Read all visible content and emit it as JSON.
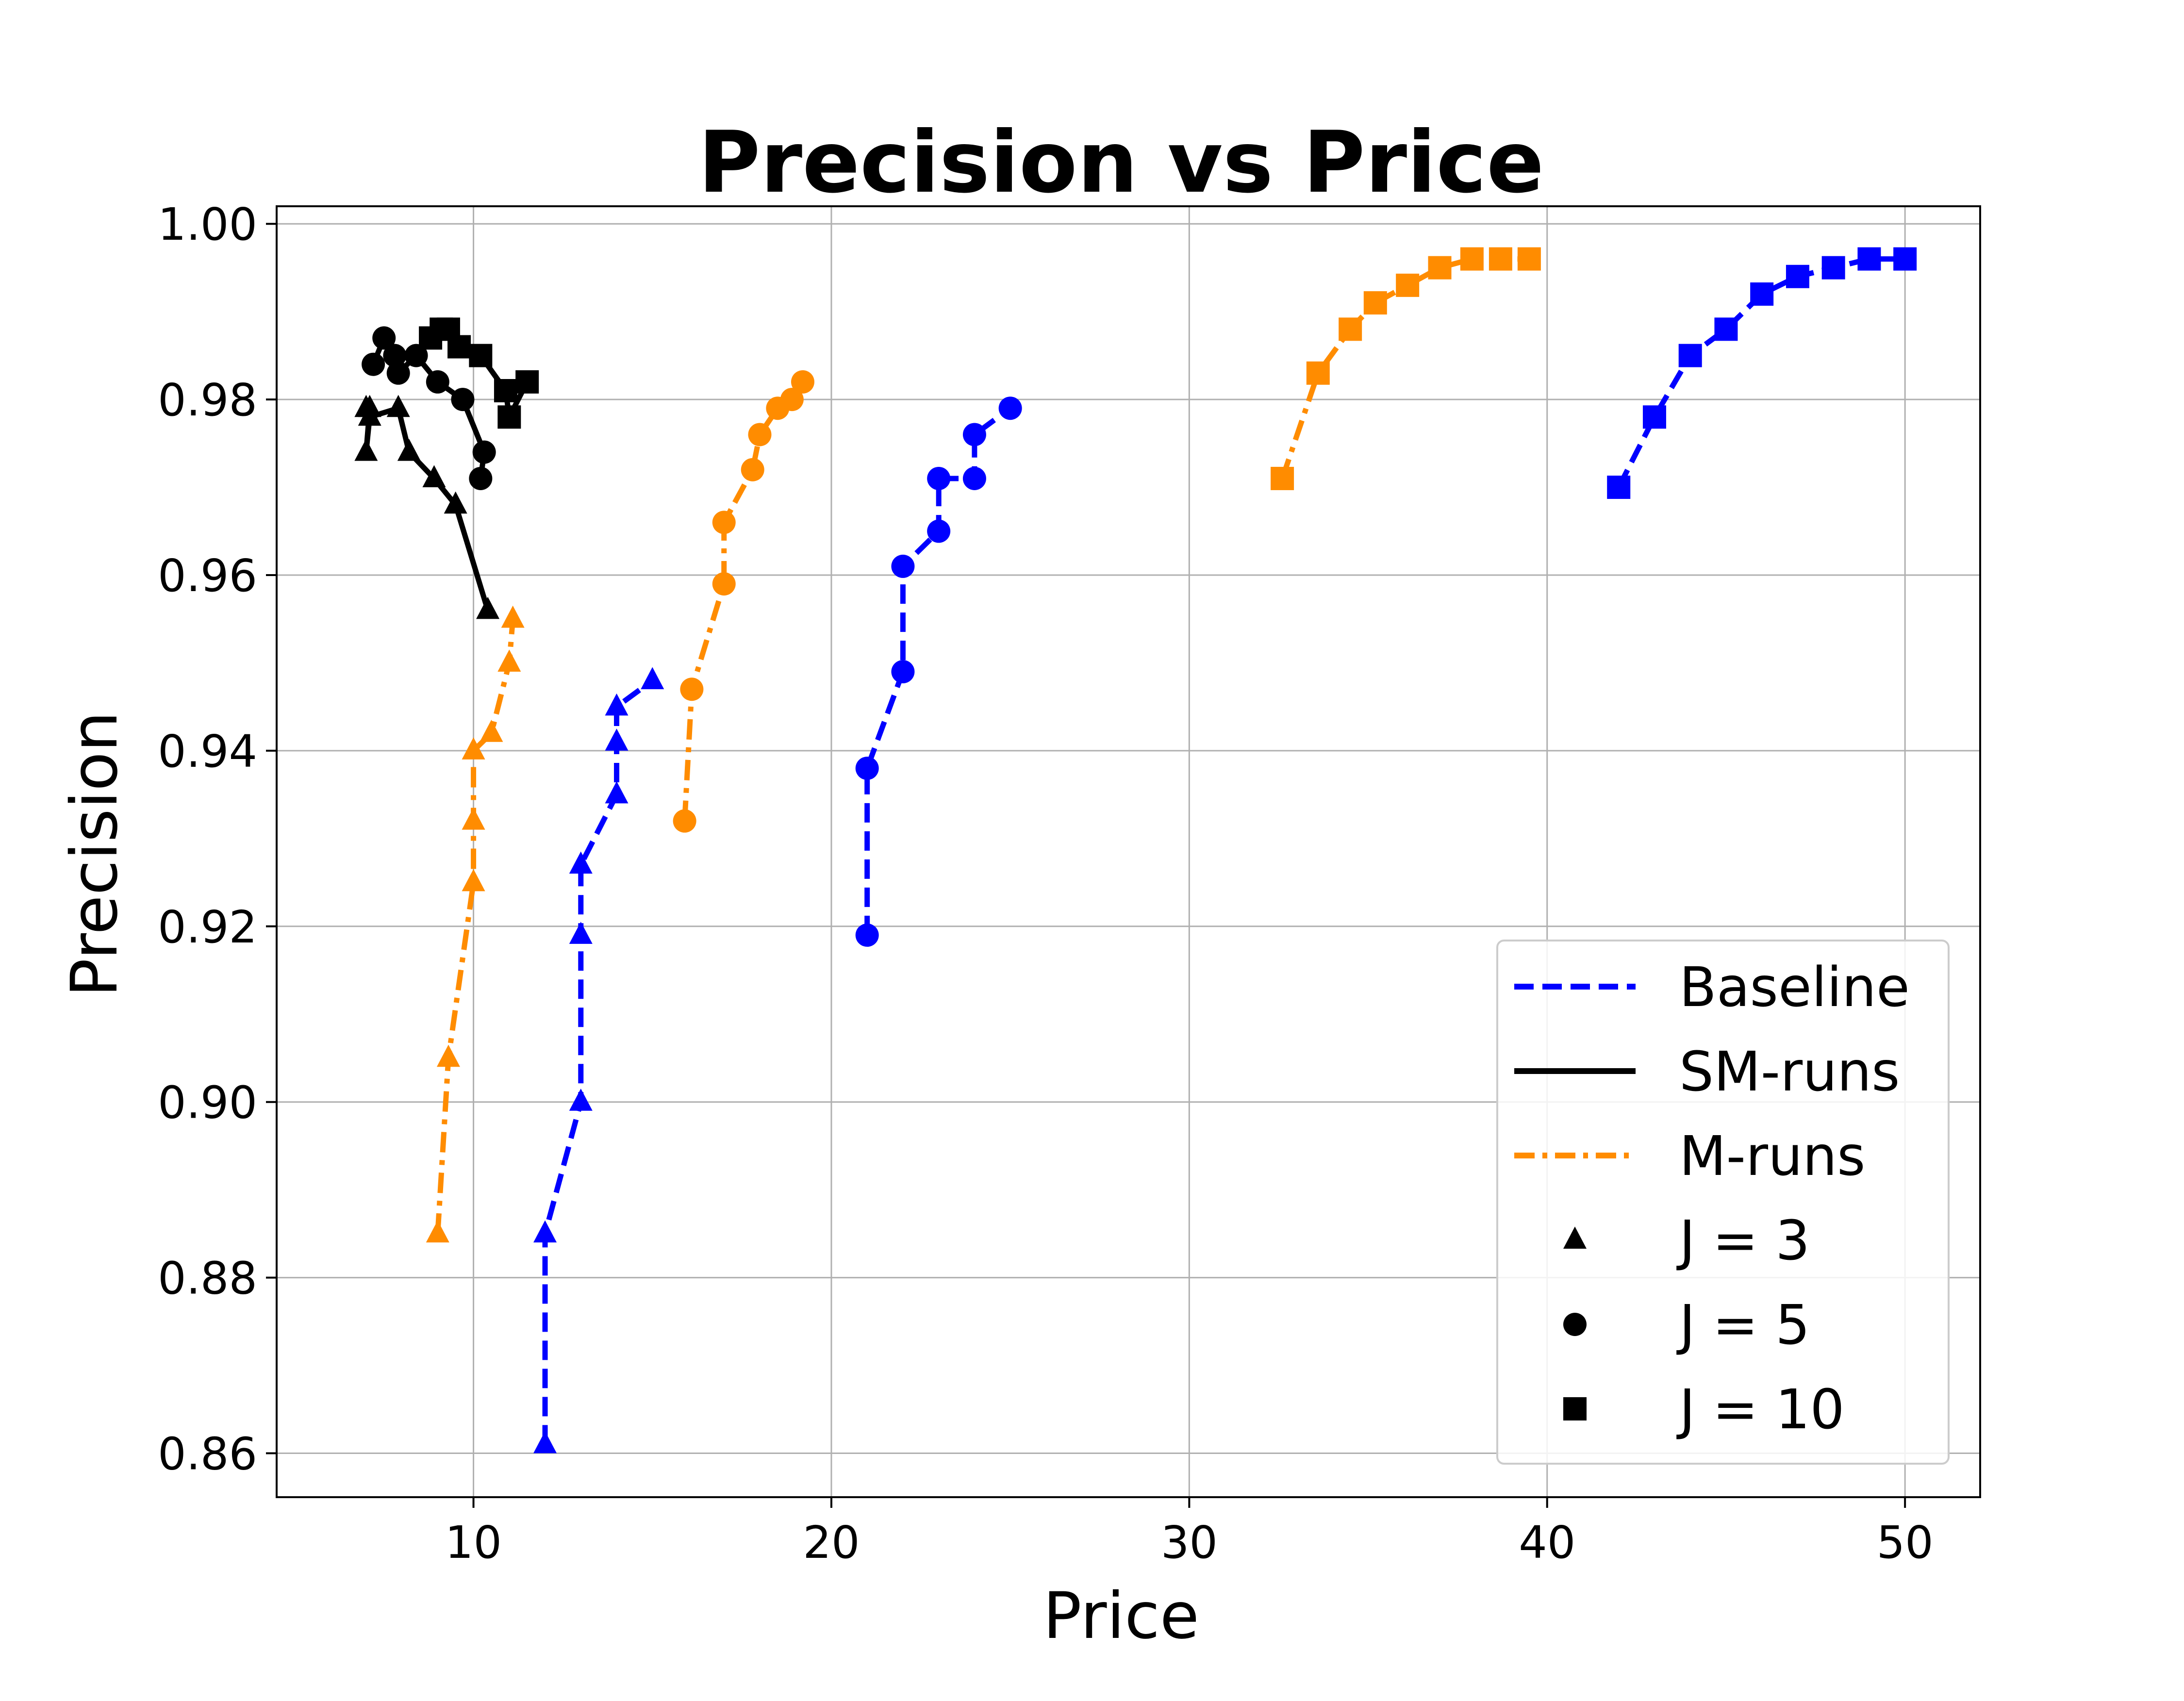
{
  "chart_data": {
    "type": "line",
    "title": "Precision vs Price",
    "xlabel": "Price",
    "ylabel": "Precision",
    "xlim": [
      4.5,
      52.1
    ],
    "ylim": [
      0.855,
      1.002
    ],
    "xticks": [
      10,
      20,
      30,
      40,
      50
    ],
    "xtick_labels": [
      "10",
      "20",
      "30",
      "40",
      "50"
    ],
    "yticks": [
      0.86,
      0.88,
      0.9,
      0.92,
      0.94,
      0.96,
      0.98,
      1.0
    ],
    "ytick_labels": [
      "0.86",
      "0.88",
      "0.90",
      "0.92",
      "0.94",
      "0.96",
      "0.98",
      "1.00"
    ],
    "grid": true,
    "legend_position": "bottom-right",
    "legend": [
      {
        "label": "Baseline",
        "kind": "line",
        "color": "#0000ff",
        "dash": "dashed"
      },
      {
        "label": "SM-runs",
        "kind": "line",
        "color": "#000000",
        "dash": "solid"
      },
      {
        "label": "M-runs",
        "kind": "line",
        "color": "#ff8c00",
        "dash": "dashdot"
      },
      {
        "label": "J = 3",
        "kind": "marker",
        "marker": "triangle"
      },
      {
        "label": "J = 5",
        "kind": "marker",
        "marker": "circle"
      },
      {
        "label": "J = 10",
        "kind": "marker",
        "marker": "square"
      }
    ],
    "series": [
      {
        "group": "Baseline",
        "color": "#0000ff",
        "dash": "dashed",
        "marker": "triangle",
        "x": [
          12,
          12,
          13,
          13,
          13,
          14,
          14,
          14,
          15
        ],
        "y": [
          0.861,
          0.885,
          0.9,
          0.919,
          0.927,
          0.935,
          0.941,
          0.945,
          0.948
        ]
      },
      {
        "group": "Baseline",
        "color": "#0000ff",
        "dash": "dashed",
        "marker": "circle",
        "x": [
          21,
          21,
          22,
          22,
          23,
          23,
          24,
          24,
          25
        ],
        "y": [
          0.919,
          0.938,
          0.949,
          0.961,
          0.965,
          0.971,
          0.971,
          0.976,
          0.979
        ]
      },
      {
        "group": "Baseline",
        "color": "#0000ff",
        "dash": "dashed",
        "marker": "square",
        "x": [
          42,
          43,
          44,
          45,
          46,
          47,
          48,
          49,
          50
        ],
        "y": [
          0.97,
          0.978,
          0.985,
          0.988,
          0.992,
          0.994,
          0.995,
          0.996,
          0.996
        ]
      },
      {
        "group": "SM-runs",
        "color": "#000000",
        "dash": "solid",
        "marker": "triangle",
        "x": [
          7.0,
          7.1,
          7.0,
          7.1,
          7.9,
          8.2,
          8.9,
          9.5,
          10.4
        ],
        "y": [
          0.979,
          0.979,
          0.974,
          0.978,
          0.979,
          0.974,
          0.971,
          0.968,
          0.956
        ]
      },
      {
        "group": "SM-runs",
        "color": "#000000",
        "dash": "solid",
        "marker": "circle",
        "x": [
          7.2,
          7.5,
          7.8,
          7.9,
          8.4,
          9.0,
          9.7,
          10.3,
          10.2
        ],
        "y": [
          0.984,
          0.987,
          0.985,
          0.983,
          0.985,
          0.982,
          0.98,
          0.974,
          0.971
        ]
      },
      {
        "group": "SM-runs",
        "color": "#000000",
        "dash": "solid",
        "marker": "square",
        "x": [
          8.8,
          9.1,
          9.3,
          9.6,
          10.2,
          10.9,
          11.0,
          11.5
        ],
        "y": [
          0.987,
          0.988,
          0.988,
          0.986,
          0.985,
          0.981,
          0.978,
          0.982
        ]
      },
      {
        "group": "M-runs",
        "color": "#ff8c00",
        "dash": "dashdot",
        "marker": "triangle",
        "x": [
          9.0,
          9.3,
          10.0,
          10.0,
          10.0,
          10.5,
          11.0,
          11.1
        ],
        "y": [
          0.885,
          0.905,
          0.925,
          0.932,
          0.94,
          0.942,
          0.95,
          0.955
        ]
      },
      {
        "group": "M-runs",
        "color": "#ff8c00",
        "dash": "dashdot",
        "marker": "circle",
        "x": [
          15.9,
          16.1,
          17.0,
          17.0,
          17.8,
          18.0,
          18.5,
          18.9,
          19.2
        ],
        "y": [
          0.932,
          0.947,
          0.959,
          0.966,
          0.972,
          0.976,
          0.979,
          0.98,
          0.982
        ]
      },
      {
        "group": "M-runs",
        "color": "#ff8c00",
        "dash": "dashdot",
        "marker": "square",
        "x": [
          32.6,
          33.6,
          34.5,
          35.2,
          36.1,
          37.0,
          37.9,
          38.7,
          39.5
        ],
        "y": [
          0.971,
          0.983,
          0.988,
          0.991,
          0.993,
          0.995,
          0.996,
          0.996,
          0.996
        ]
      }
    ]
  }
}
